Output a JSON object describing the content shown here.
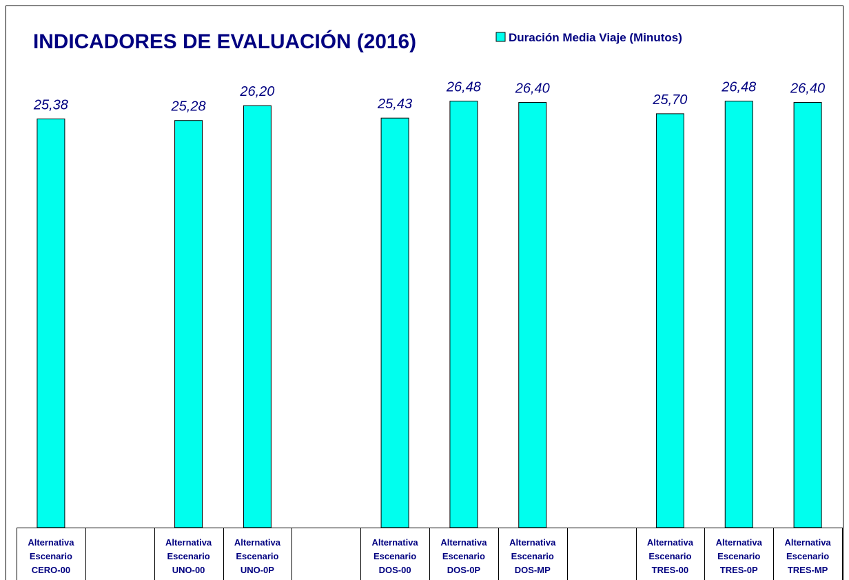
{
  "chart_data": {
    "type": "bar",
    "title": "INDICADORES DE EVALUACIÓN (2016)",
    "categories": [
      [
        "Alternativa",
        "Escenario",
        "CERO-00"
      ],
      null,
      [
        "Alternativa",
        "Escenario",
        "UNO-00"
      ],
      [
        "Alternativa",
        "Escenario",
        "UNO-0P"
      ],
      null,
      [
        "Alternativa",
        "Escenario",
        "DOS-00"
      ],
      [
        "Alternativa",
        "Escenario",
        "DOS-0P"
      ],
      [
        "Alternativa",
        "Escenario",
        "DOS-MP"
      ],
      null,
      [
        "Alternativa",
        "Escenario",
        "TRES-00"
      ],
      [
        "Alternativa",
        "Escenario",
        "TRES-0P"
      ],
      [
        "Alternativa",
        "Escenario",
        "TRES-MP"
      ]
    ],
    "series": [
      {
        "name": "Duración Media Viaje (Minutos)",
        "color": "#00ffee",
        "values": [
          25.38,
          null,
          25.28,
          26.2,
          null,
          25.43,
          26.48,
          26.4,
          null,
          25.7,
          26.48,
          26.4
        ],
        "value_labels": [
          "25,38",
          null,
          "25,28",
          "26,20",
          null,
          "25,43",
          "26,48",
          "26,40",
          null,
          "25,70",
          "26,48",
          "26,40"
        ]
      }
    ],
    "legend": "top-right"
  }
}
